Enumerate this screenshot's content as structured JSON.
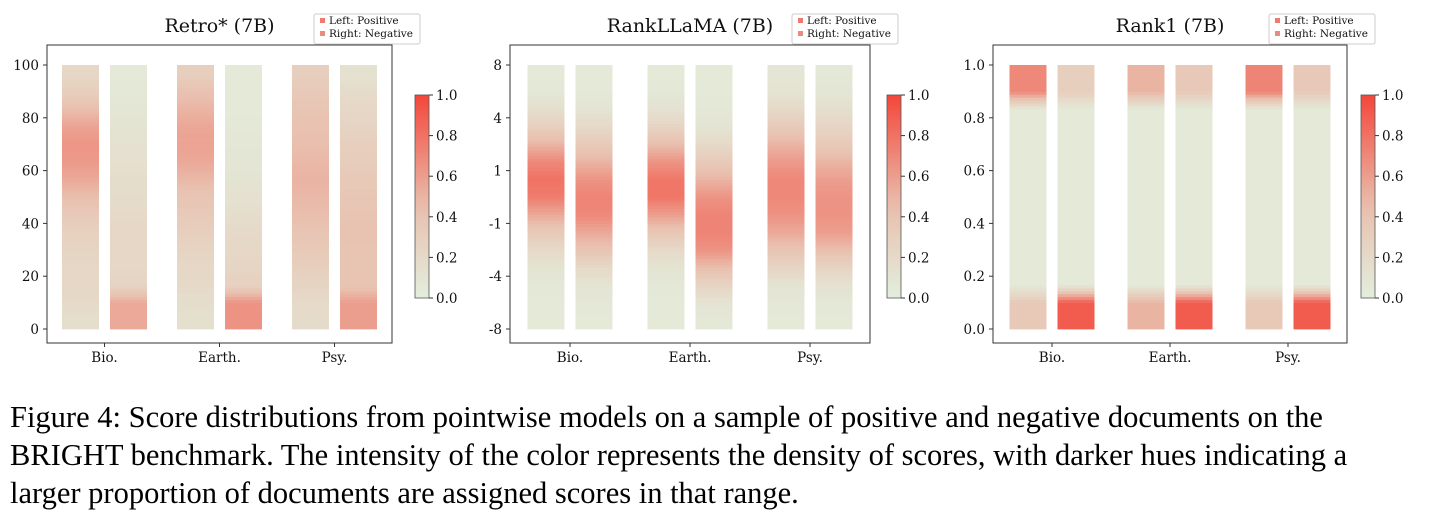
{
  "chart_data": [
    {
      "type": "heatmap",
      "title": "Retro* (7B)",
      "categories": [
        "Bio.",
        "Earth.",
        "Psy."
      ],
      "y_ticks": [
        "0",
        "20",
        "40",
        "60",
        "80",
        "100"
      ],
      "legend": [
        "Left: Positive",
        "Right: Negative"
      ],
      "colorbar": {
        "range": [
          0.0,
          1.0
        ],
        "ticks": [
          "0.0",
          "0.2",
          "0.4",
          "0.6",
          "0.8",
          "1.0"
        ]
      },
      "series": [
        {
          "name": "Left: Positive",
          "density": [
            [
              0.15,
              0.2,
              0.22,
              0.22,
              0.25,
              0.28,
              0.35,
              0.45,
              0.55,
              0.62,
              0.64,
              0.58,
              0.45,
              0.3,
              0.22
            ],
            [
              0.14,
              0.16,
              0.2,
              0.22,
              0.25,
              0.3,
              0.35,
              0.4,
              0.48,
              0.55,
              0.58,
              0.56,
              0.5,
              0.42,
              0.3
            ],
            [
              0.18,
              0.2,
              0.25,
              0.3,
              0.35,
              0.4,
              0.45,
              0.48,
              0.5,
              0.48,
              0.45,
              0.42,
              0.4,
              0.35,
              0.3
            ]
          ]
        },
        {
          "name": "Right: Negative",
          "density": [
            [
              0.55,
              0.55,
              0.25,
              0.22,
              0.22,
              0.22,
              0.2,
              0.18,
              0.16,
              0.14,
              0.12,
              0.1,
              0.08,
              0.06,
              0.05
            ],
            [
              0.65,
              0.65,
              0.28,
              0.24,
              0.22,
              0.2,
              0.16,
              0.13,
              0.1,
              0.08,
              0.07,
              0.06,
              0.05,
              0.05,
              0.05
            ],
            [
              0.6,
              0.6,
              0.4,
              0.4,
              0.4,
              0.42,
              0.4,
              0.38,
              0.36,
              0.32,
              0.3,
              0.25,
              0.22,
              0.18,
              0.12
            ]
          ]
        }
      ]
    },
    {
      "type": "heatmap",
      "title": "RankLLaMA (7B)",
      "categories": [
        "Bio.",
        "Earth.",
        "Psy."
      ],
      "y_ticks": [
        "-8",
        "-4",
        "-1",
        "1",
        "4",
        "8"
      ],
      "legend": [
        "Left: Positive",
        "Right: Negative"
      ],
      "colorbar": {
        "range": [
          0.0,
          1.0
        ],
        "ticks": [
          "0.0",
          "0.2",
          "0.4",
          "0.6",
          "0.8",
          "1.0"
        ]
      },
      "series": [
        {
          "name": "Left: Positive",
          "density": [
            [
              0.05,
              0.05,
              0.06,
              0.1,
              0.2,
              0.35,
              0.55,
              0.75,
              0.8,
              0.7,
              0.5,
              0.3,
              0.15,
              0.06,
              0.05
            ],
            [
              0.05,
              0.05,
              0.06,
              0.1,
              0.2,
              0.38,
              0.6,
              0.78,
              0.78,
              0.65,
              0.45,
              0.25,
              0.12,
              0.06,
              0.05
            ],
            [
              0.05,
              0.06,
              0.1,
              0.25,
              0.4,
              0.55,
              0.65,
              0.7,
              0.7,
              0.62,
              0.5,
              0.35,
              0.2,
              0.1,
              0.08
            ]
          ]
        },
        {
          "name": "Right: Negative",
          "density": [
            [
              0.05,
              0.06,
              0.1,
              0.2,
              0.4,
              0.55,
              0.7,
              0.72,
              0.65,
              0.5,
              0.35,
              0.2,
              0.1,
              0.05,
              0.05
            ],
            [
              0.06,
              0.1,
              0.25,
              0.45,
              0.65,
              0.72,
              0.72,
              0.65,
              0.5,
              0.35,
              0.2,
              0.1,
              0.06,
              0.05,
              0.05
            ],
            [
              0.05,
              0.06,
              0.12,
              0.25,
              0.45,
              0.6,
              0.65,
              0.65,
              0.6,
              0.5,
              0.35,
              0.25,
              0.15,
              0.08,
              0.06
            ]
          ]
        }
      ]
    },
    {
      "type": "heatmap",
      "title": "Rank1 (7B)",
      "categories": [
        "Bio.",
        "Earth.",
        "Psy."
      ],
      "y_ticks": [
        "0.0",
        "0.2",
        "0.4",
        "0.6",
        "0.8",
        "1.0"
      ],
      "legend": [
        "Left: Positive",
        "Right: Negative"
      ],
      "colorbar": {
        "range": [
          0.0,
          1.0
        ],
        "ticks": [
          "0.0",
          "0.2",
          "0.4",
          "0.6",
          "0.8",
          "1.0"
        ]
      },
      "series": [
        {
          "name": "Left: Positive",
          "density": [
            [
              0.35,
              0.35,
              0.05,
              0.05,
              0.05,
              0.05,
              0.05,
              0.05,
              0.05,
              0.05,
              0.05,
              0.05,
              0.05,
              0.7,
              0.7
            ],
            [
              0.5,
              0.5,
              0.05,
              0.05,
              0.05,
              0.05,
              0.05,
              0.05,
              0.05,
              0.05,
              0.05,
              0.05,
              0.05,
              0.5,
              0.5
            ],
            [
              0.35,
              0.35,
              0.05,
              0.05,
              0.05,
              0.05,
              0.05,
              0.05,
              0.05,
              0.05,
              0.05,
              0.05,
              0.05,
              0.72,
              0.72
            ]
          ]
        },
        {
          "name": "Right: Negative",
          "density": [
            [
              0.9,
              0.9,
              0.05,
              0.05,
              0.05,
              0.05,
              0.05,
              0.05,
              0.05,
              0.05,
              0.05,
              0.05,
              0.05,
              0.3,
              0.3
            ],
            [
              0.9,
              0.9,
              0.05,
              0.05,
              0.05,
              0.05,
              0.05,
              0.05,
              0.05,
              0.05,
              0.05,
              0.05,
              0.05,
              0.35,
              0.35
            ],
            [
              0.9,
              0.9,
              0.05,
              0.05,
              0.05,
              0.05,
              0.05,
              0.05,
              0.05,
              0.05,
              0.05,
              0.05,
              0.05,
              0.35,
              0.35
            ]
          ]
        }
      ]
    }
  ],
  "colors": {
    "low": "#e3eedd",
    "mid": "#e9bfae",
    "high": "#f4463a"
  },
  "caption": "Figure 4: Score distributions from pointwise models on a sample of positive and negative documents on the BRIGHT benchmark. The intensity of the color represents the density of scores, with darker hues indicating a larger proportion of documents are assigned scores in that range."
}
